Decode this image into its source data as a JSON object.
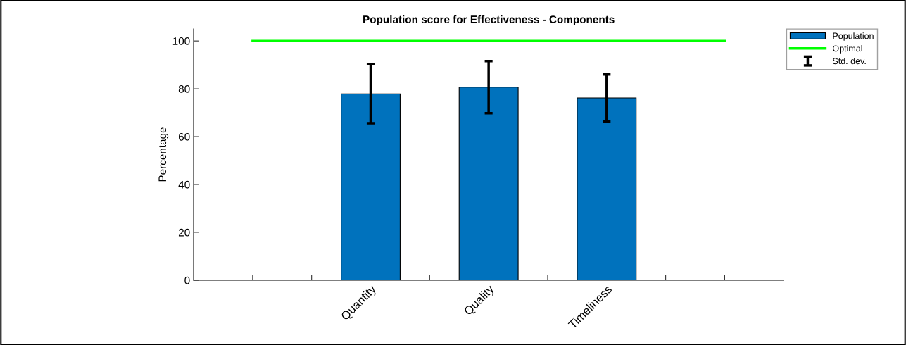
{
  "chart_data": {
    "type": "bar",
    "title": "Population score for Effectiveness - Components",
    "ylabel": "Percentage",
    "categories": [
      null,
      null,
      "Quantity",
      null,
      "Quality",
      null,
      "Timeliness",
      null,
      null
    ],
    "series": [
      {
        "name": "Population",
        "color": "#0072bd",
        "values": [
          null,
          null,
          77.9,
          null,
          80.7,
          null,
          76.2,
          null,
          null
        ],
        "errors": [
          null,
          null,
          [
            65.6,
            90.3
          ],
          null,
          [
            69.8,
            91.6
          ],
          null,
          [
            66.3,
            86.0
          ],
          null,
          null
        ]
      },
      {
        "type": "line",
        "name": "Optimal",
        "color": "#00ff00",
        "values": [
          100,
          100,
          100,
          100,
          100,
          100,
          100,
          100,
          100
        ]
      }
    ],
    "annotations": [
      "Std. dev."
    ],
    "ylim": [
      0,
      105
    ],
    "yticks": [
      0,
      20,
      40,
      60,
      80,
      100
    ],
    "grid": false,
    "legend": "top right"
  }
}
